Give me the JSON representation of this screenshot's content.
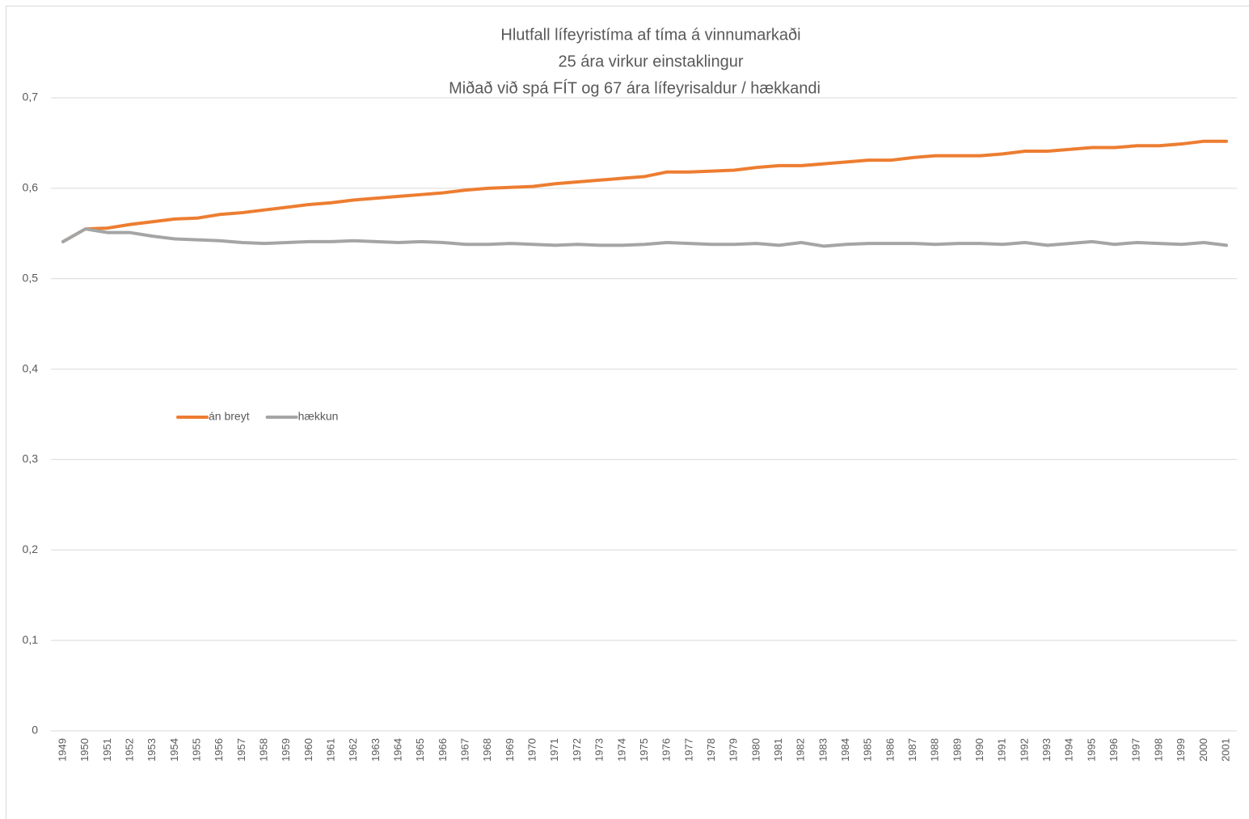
{
  "chart_data": {
    "type": "line",
    "title": [
      "Hlutfall lífeyristíma af tíma á vinnumarkaði",
      "25 ára virkur einstaklingur",
      "Miðað við spá FÍT og 67 ára lífeyrisaldur / hækkandi"
    ],
    "categories": [
      "1949",
      "1950",
      "1951",
      "1952",
      "1953",
      "1954",
      "1955",
      "1956",
      "1957",
      "1958",
      "1959",
      "1960",
      "1961",
      "1962",
      "1963",
      "1964",
      "1965",
      "1966",
      "1967",
      "1968",
      "1969",
      "1970",
      "1971",
      "1972",
      "1973",
      "1974",
      "1975",
      "1976",
      "1977",
      "1978",
      "1979",
      "1980",
      "1981",
      "1982",
      "1983",
      "1984",
      "1985",
      "1986",
      "1987",
      "1988",
      "1989",
      "1990",
      "1991",
      "1992",
      "1993",
      "1994",
      "1995",
      "1996",
      "1997",
      "1998",
      "1999",
      "2000",
      "2001"
    ],
    "series": [
      {
        "name": "án breyt",
        "color": "#ed7d31",
        "values": [
          0.541,
          0.555,
          0.556,
          0.56,
          0.563,
          0.566,
          0.567,
          0.571,
          0.573,
          0.576,
          0.579,
          0.582,
          0.584,
          0.587,
          0.589,
          0.591,
          0.593,
          0.595,
          0.598,
          0.6,
          0.601,
          0.602,
          0.605,
          0.607,
          0.609,
          0.611,
          0.613,
          0.618,
          0.618,
          0.619,
          0.62,
          0.623,
          0.625,
          0.625,
          0.627,
          0.629,
          0.631,
          0.631,
          0.634,
          0.636,
          0.636,
          0.636,
          0.638,
          0.641,
          0.641,
          0.643,
          0.645,
          0.645,
          0.647,
          0.647,
          0.649,
          0.652,
          0.652
        ]
      },
      {
        "name": "hækkun",
        "color": "#a5a5a5",
        "values": [
          0.541,
          0.555,
          0.551,
          0.551,
          0.547,
          0.544,
          0.543,
          0.542,
          0.54,
          0.539,
          0.54,
          0.541,
          0.541,
          0.542,
          0.541,
          0.54,
          0.541,
          0.54,
          0.538,
          0.538,
          0.539,
          0.538,
          0.537,
          0.538,
          0.537,
          0.537,
          0.538,
          0.54,
          0.539,
          0.538,
          0.538,
          0.539,
          0.537,
          0.54,
          0.536,
          0.538,
          0.539,
          0.539,
          0.539,
          0.538,
          0.539,
          0.539,
          0.538,
          0.54,
          0.537,
          0.539,
          0.541,
          0.538,
          0.54,
          0.539,
          0.538,
          0.54,
          0.537
        ]
      }
    ],
    "ylim": [
      0,
      0.7
    ],
    "yticks": [
      0,
      {
        "value": 0.1,
        "label": "0,1"
      },
      {
        "value": 0.2,
        "label": "0,2"
      },
      {
        "value": 0.3,
        "label": "0,3"
      },
      {
        "value": 0.4,
        "label": "0,4"
      },
      {
        "value": 0.5,
        "label": "0,5"
      },
      {
        "value": 0.6,
        "label": "0,6"
      },
      {
        "value": 0.7,
        "label": "0,7"
      }
    ],
    "grid": true,
    "legend": "left"
  }
}
